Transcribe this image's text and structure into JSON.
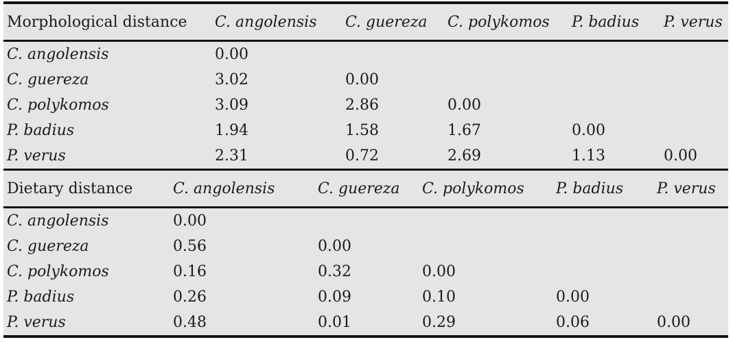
{
  "colors": {
    "page_background": "#ffffff",
    "panel_background": "#e5e5e5",
    "rule": "#141414",
    "text": "#1b1b1b"
  },
  "tables": [
    {
      "title": "Morphological distance",
      "columns": [
        "C. angolensis",
        "C. guereza",
        "C. polykomos",
        "P. badius",
        "P. verus"
      ],
      "rows": [
        {
          "label": "C. angolensis",
          "values": [
            "0.00",
            "",
            "",
            "",
            ""
          ]
        },
        {
          "label": "C. guereza",
          "values": [
            "3.02",
            "0.00",
            "",
            "",
            ""
          ]
        },
        {
          "label": "C. polykomos",
          "values": [
            "3.09",
            "2.86",
            "0.00",
            "",
            ""
          ]
        },
        {
          "label": "P. badius",
          "values": [
            "1.94",
            "1.58",
            "1.67",
            "0.00",
            ""
          ]
        },
        {
          "label": "P. verus",
          "values": [
            "2.31",
            "0.72",
            "2.69",
            "1.13",
            "0.00"
          ]
        }
      ]
    },
    {
      "title": "Dietary distance",
      "columns": [
        "C. angolensis",
        "C. guereza",
        "C. polykomos",
        "P. badius",
        "P. verus"
      ],
      "rows": [
        {
          "label": "C. angolensis",
          "values": [
            "0.00",
            "",
            "",
            "",
            ""
          ]
        },
        {
          "label": "C. guereza",
          "values": [
            "0.56",
            "0.00",
            "",
            "",
            ""
          ]
        },
        {
          "label": "C. polykomos",
          "values": [
            "0.16",
            "0.32",
            "0.00",
            "",
            ""
          ]
        },
        {
          "label": "P. badius",
          "values": [
            "0.26",
            "0.09",
            "0.10",
            "0.00",
            ""
          ]
        },
        {
          "label": "P. verus",
          "values": [
            "0.48",
            "0.01",
            "0.29",
            "0.06",
            "0.00"
          ]
        }
      ]
    }
  ]
}
